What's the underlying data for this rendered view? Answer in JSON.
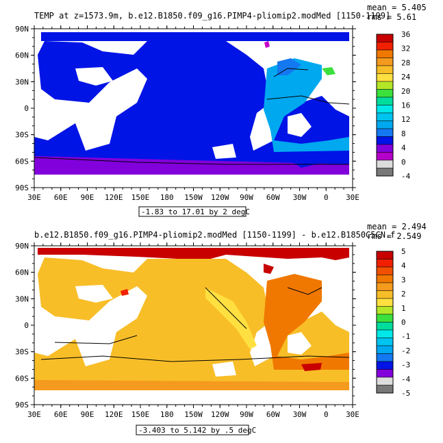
{
  "panels": [
    {
      "title": "TEMP at z=1573.9m, b.e12.B1850.f09_g16.PIMP4-pliomip2.modMed [1150-1199]",
      "mean": "mean = 5.405",
      "rms": "rms = 5.61",
      "range": "-1.83 to 17.01 by 2 degC",
      "colorbar_labels": [
        "36",
        "32",
        "28",
        "24",
        "20",
        "16",
        "12",
        "8",
        "4",
        "0",
        "-4"
      ],
      "colors": [
        "#c80000",
        "#f02000",
        "#f07800",
        "#f49a1e",
        "#f8be28",
        "#ffe040",
        "#b4e628",
        "#3ce03c",
        "#00dc9c",
        "#00e8e8",
        "#00c4f0",
        "#00a8f0",
        "#1478f0",
        "#0014e6",
        "#8200dc",
        "#b400c8",
        "#dcdcdc",
        "#787878"
      ]
    },
    {
      "title": "b.e12.B1850.f09_g16.PIMP4-pliomip2.modMed [1150-1199] - b.e12.B1850C5CN.f",
      "mean": "mean = 2.494",
      "rms": "rms = 2.549",
      "range": "-3.403 to 5.142 by .5 degC",
      "colorbar_labels": [
        "5",
        "4",
        "3",
        "2",
        "1",
        "0",
        "-1",
        "-2",
        "-3",
        "-4",
        "-5"
      ],
      "colors": [
        "#c80000",
        "#f02000",
        "#f05000",
        "#f07800",
        "#f49a1e",
        "#f8be28",
        "#ffe040",
        "#b4e628",
        "#3ce03c",
        "#00dc9c",
        "#00e8e8",
        "#00c4f0",
        "#00a8f0",
        "#1478f0",
        "#0014e6",
        "#8200dc",
        "#dcdcdc",
        "#787878"
      ]
    }
  ],
  "lat_labels": [
    "90N",
    "60N",
    "30N",
    "0",
    "30S",
    "60S",
    "90S"
  ],
  "lon_labels": [
    "30E",
    "60E",
    "90E",
    "120E",
    "150E",
    "180",
    "150W",
    "120W",
    "90W",
    "60W",
    "30W",
    "0",
    "30E"
  ]
}
